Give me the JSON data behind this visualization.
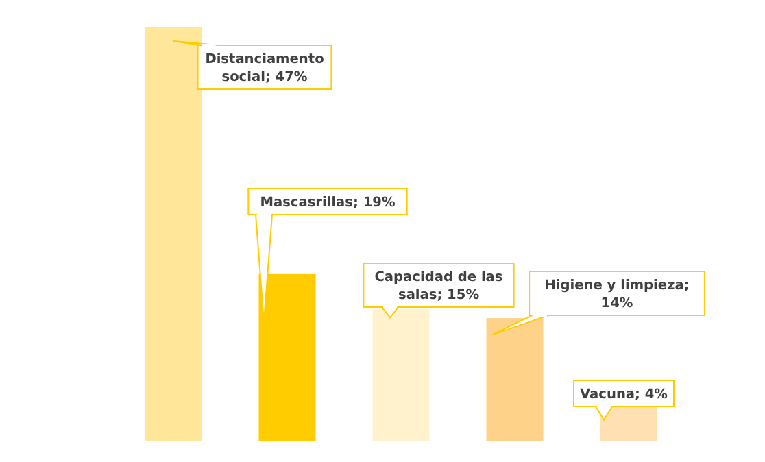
{
  "chart_data": {
    "type": "bar",
    "relative": false,
    "categories": [
      null,
      null,
      null,
      null,
      null
    ],
    "values": [
      47,
      19,
      15,
      14,
      4
    ],
    "value_labels": [
      "Distanciamento social; 47%",
      "Mascasrillas; 19%",
      "Capacidad de las salas; 15%",
      "Higiene y limpieza; 14%",
      "Vacuna; 4%"
    ],
    "colors": [
      "#ffe699",
      "#ffcc00",
      "#fff2cc",
      "#ffd28a",
      "#ffe0b3"
    ]
  }
}
